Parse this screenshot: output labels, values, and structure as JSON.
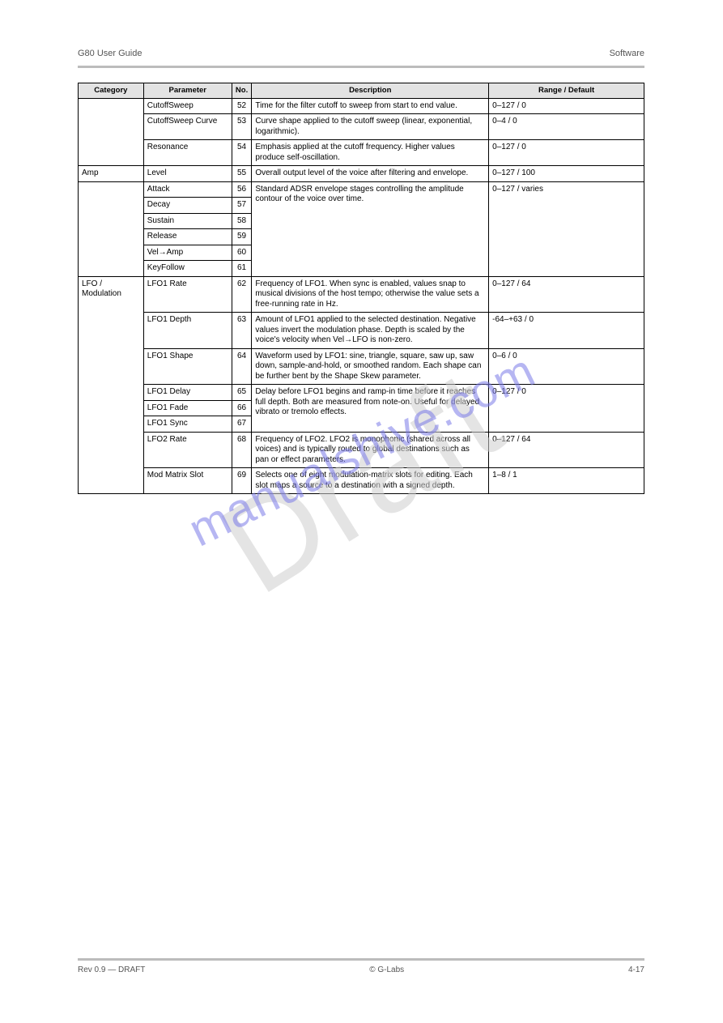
{
  "header": {
    "left": "G80 User Guide",
    "right": "Software"
  },
  "watermark_back": "Draft",
  "watermark_front": "manualshive.com",
  "table": {
    "columns": [
      "Category",
      "Parameter",
      "No.",
      "Description",
      "Range / Default"
    ],
    "rows": [
      {
        "c1": "",
        "c2": "CutoffSweep",
        "c3": "52",
        "c4": "Time for the filter cutoff to sweep from start to end value.",
        "c5": "0–127 / 0"
      },
      {
        "c1": "",
        "c2": "CutoffSweep Curve",
        "c3": "53",
        "c4": "Curve shape applied to the cutoff sweep (linear, exponential, logarithmic).",
        "c5": "0–4 / 0"
      },
      {
        "c1": "",
        "c2": "Resonance",
        "c3": "54",
        "c4": "Emphasis applied at the cutoff frequency. Higher values produce self-oscillation.",
        "c5": "0–127 / 0"
      },
      {
        "c1": "Amp",
        "c2": "Level",
        "c3": "55",
        "c4": "Overall output level of the voice after filtering and envelope.",
        "c5": "0–127 / 100"
      },
      {
        "c1": "",
        "c2": "Attack",
        "c3": "56",
        "c4": "",
        "c5": ""
      },
      {
        "c1": "",
        "c2": "Decay",
        "c3": "57",
        "c4": "",
        "c5": ""
      },
      {
        "c1": "",
        "c2": "Sustain",
        "c3": "58",
        "c4": "Standard ADSR envelope stages controlling the amplitude contour of the voice over time.",
        "c5": "0–127 / varies"
      },
      {
        "c1": "",
        "c2": "Release",
        "c3": "59",
        "c4": "",
        "c5": ""
      },
      {
        "c1": "",
        "c2": "Vel→Amp",
        "c3": "60",
        "c4": "",
        "c5": ""
      },
      {
        "c1": "",
        "c2": "KeyFollow",
        "c3": "61",
        "c4": "",
        "c5": ""
      },
      {
        "c1": "LFO / Modulation",
        "c2": "LFO1 Rate",
        "c3": "62",
        "c4": "Frequency of LFO1. When sync is enabled, values snap to musical divisions of the host tempo; otherwise the value sets a free-running rate in Hz.",
        "c5": "0–127 / 64"
      },
      {
        "c1": "",
        "c2": "LFO1 Depth",
        "c3": "63",
        "c4": "Amount of LFO1 applied to the selected destination. Negative values invert the modulation phase. Depth is scaled by the voice's velocity when Vel→LFO is non-zero.",
        "c5": "-64–+63 / 0"
      },
      {
        "c1": "",
        "c2": "LFO1 Shape",
        "c3": "64",
        "c4": "Waveform used by LFO1: sine, triangle, square, saw up, saw down, sample-and-hold, or smoothed random. Each shape can be further bent by the Shape Skew parameter.",
        "c5": "0–6 / 0"
      },
      {
        "c1": "",
        "c2": "LFO1 Delay",
        "c3": "65",
        "c4": "",
        "c5": ""
      },
      {
        "c1": "",
        "c2": "LFO1 Fade",
        "c3": "66",
        "c4": "Delay before LFO1 begins and ramp-in time before it reaches full depth. Both are measured from note-on. Useful for delayed vibrato or tremolo effects.",
        "c5": "0–127 / 0"
      },
      {
        "c1": "",
        "c2": "LFO1 Sync",
        "c3": "67",
        "c4": "",
        "c5": ""
      },
      {
        "c1": "",
        "c2": "LFO2 Rate",
        "c3": "68",
        "c4": "Frequency of LFO2. LFO2 is monophonic (shared across all voices) and is typically routed to global destinations such as pan or effect parameters.",
        "c5": "0–127 / 64"
      },
      {
        "c1": "",
        "c2": "Mod Matrix Slot",
        "c3": "69",
        "c4": "Selects one of eight modulation-matrix slots for editing. Each slot maps a source to a destination with a signed depth.",
        "c5": "1–8 / 1"
      }
    ],
    "rowspans": [
      {
        "row": 0,
        "col": 0,
        "span": 3
      },
      {
        "row": 4,
        "col": 0,
        "span": 6
      },
      {
        "row": 4,
        "col": 3,
        "span": 6
      },
      {
        "row": 4,
        "col": 4,
        "span": 6
      },
      {
        "row": 10,
        "col": 0,
        "span": 8
      },
      {
        "row": 13,
        "col": 3,
        "span": 3
      },
      {
        "row": 13,
        "col": 4,
        "span": 3
      }
    ]
  },
  "footer": {
    "left": "Rev 0.9 — DRAFT",
    "center": "© G-Labs",
    "right": "4-17"
  }
}
